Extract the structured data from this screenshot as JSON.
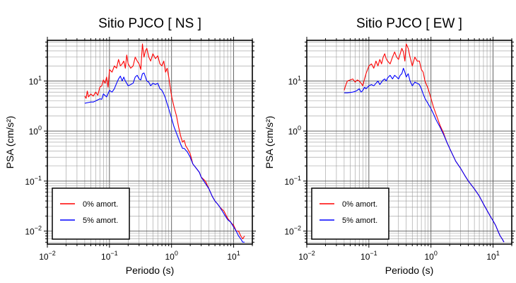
{
  "chart_data": [
    {
      "type": "line",
      "title": "Sitio PJCO [ NS ]",
      "xlabel": "Periodo (s)",
      "ylabel": "PSA (cm/s²)",
      "xscale": "log",
      "yscale": "log",
      "xlim": [
        0.01,
        20
      ],
      "ylim": [
        0.0055,
        65
      ],
      "x_ticks": [
        {
          "base": "10",
          "exp": "−2",
          "value": 0.01
        },
        {
          "base": "10",
          "exp": "−1",
          "value": 0.1
        },
        {
          "base": "10",
          "exp": "0",
          "value": 1
        },
        {
          "base": "10",
          "exp": "1",
          "value": 10
        }
      ],
      "y_ticks": [
        {
          "base": "10",
          "exp": "−2",
          "value": 0.01
        },
        {
          "base": "10",
          "exp": "−1",
          "value": 0.1
        },
        {
          "base": "10",
          "exp": "0",
          "value": 1
        },
        {
          "base": "10",
          "exp": "1",
          "value": 10
        }
      ],
      "grid": true,
      "legend_position": "bottom-left",
      "series": [
        {
          "name": "0% amort.",
          "color": "#ff0000",
          "x": [
            0.04,
            0.042,
            0.044,
            0.046,
            0.05,
            0.055,
            0.06,
            0.065,
            0.07,
            0.075,
            0.08,
            0.085,
            0.09,
            0.095,
            0.1,
            0.11,
            0.12,
            0.13,
            0.14,
            0.15,
            0.16,
            0.17,
            0.18,
            0.19,
            0.2,
            0.22,
            0.24,
            0.26,
            0.28,
            0.3,
            0.32,
            0.34,
            0.36,
            0.38,
            0.4,
            0.43,
            0.46,
            0.5,
            0.55,
            0.6,
            0.65,
            0.7,
            0.75,
            0.8,
            0.85,
            0.9,
            1.0,
            1.1,
            1.2,
            1.3,
            1.4,
            1.5,
            1.6,
            1.7,
            1.8,
            2.0,
            2.2,
            2.5,
            2.8,
            3.0,
            3.5,
            4.0,
            4.5,
            5.0,
            5.5,
            6.0,
            7.0,
            8.0,
            9.0,
            10.0,
            11.0,
            12.0,
            13.0,
            14.0,
            15.0
          ],
          "y": [
            5.0,
            4.5,
            6.3,
            4.8,
            5.5,
            5.0,
            6.0,
            5.2,
            7.5,
            8.0,
            10.5,
            9.0,
            12.0,
            7.5,
            17.0,
            15.0,
            20.0,
            18.0,
            27.0,
            20.0,
            22.0,
            25.0,
            18.0,
            33.0,
            22.0,
            18.0,
            20.0,
            30.0,
            25.0,
            22.0,
            17.0,
            55.0,
            30.0,
            40.0,
            45.0,
            30.0,
            25.0,
            35.0,
            28.0,
            32.0,
            22.0,
            20.0,
            25.0,
            15.0,
            18.0,
            12.0,
            5.0,
            3.0,
            2.0,
            1.2,
            0.8,
            0.6,
            0.65,
            0.5,
            0.45,
            0.35,
            0.22,
            0.18,
            0.15,
            0.12,
            0.1,
            0.07,
            0.05,
            0.04,
            0.035,
            0.03,
            0.025,
            0.018,
            0.015,
            0.013,
            0.01,
            0.01,
            0.008,
            0.007,
            0.008
          ]
        },
        {
          "name": "5% amort.",
          "color": "#0000ff",
          "x": [
            0.04,
            0.045,
            0.05,
            0.055,
            0.06,
            0.065,
            0.07,
            0.075,
            0.08,
            0.09,
            0.1,
            0.11,
            0.12,
            0.13,
            0.14,
            0.15,
            0.16,
            0.17,
            0.18,
            0.19,
            0.2,
            0.22,
            0.24,
            0.26,
            0.28,
            0.3,
            0.32,
            0.34,
            0.36,
            0.38,
            0.4,
            0.43,
            0.46,
            0.5,
            0.55,
            0.6,
            0.65,
            0.7,
            0.75,
            0.8,
            0.85,
            0.9,
            1.0,
            1.1,
            1.2,
            1.3,
            1.4,
            1.5,
            1.6,
            1.8,
            2.0,
            2.2,
            2.5,
            2.8,
            3.0,
            3.5,
            4.0,
            4.5,
            5.0,
            5.5,
            6.0,
            7.0,
            8.0,
            9.0,
            10.0,
            11.0,
            12.0,
            13.0,
            14.0,
            15.0
          ],
          "y": [
            3.6,
            3.7,
            3.8,
            3.8,
            4.0,
            4.2,
            4.4,
            4.3,
            5.5,
            4.8,
            6.5,
            6.0,
            7.0,
            9.0,
            11.0,
            12.5,
            10.0,
            12.0,
            10.0,
            9.0,
            8.0,
            8.5,
            9.0,
            12.0,
            13.0,
            11.0,
            10.5,
            14.0,
            14.5,
            12.0,
            10.0,
            9.5,
            8.0,
            9.0,
            8.5,
            9.0,
            7.0,
            6.5,
            5.5,
            4.5,
            3.5,
            2.8,
            1.8,
            1.2,
            0.9,
            0.7,
            0.55,
            0.45,
            0.45,
            0.38,
            0.3,
            0.22,
            0.18,
            0.15,
            0.12,
            0.09,
            0.07,
            0.05,
            0.04,
            0.035,
            0.03,
            0.022,
            0.017,
            0.015,
            0.012,
            0.01,
            0.008,
            0.007,
            0.006,
            0.006
          ]
        }
      ]
    },
    {
      "type": "line",
      "title": "Sitio PJCO [ EW ]",
      "xlabel": "Periodo (s)",
      "ylabel": "PSA (cm/s²)",
      "xscale": "log",
      "yscale": "log",
      "xlim": [
        0.01,
        20
      ],
      "ylim": [
        0.0055,
        65
      ],
      "x_ticks": [
        {
          "base": "10",
          "exp": "−2",
          "value": 0.01
        },
        {
          "base": "10",
          "exp": "−1",
          "value": 0.1
        },
        {
          "base": "10",
          "exp": "0",
          "value": 1
        },
        {
          "base": "10",
          "exp": "1",
          "value": 10
        }
      ],
      "y_ticks": [
        {
          "base": "10",
          "exp": "−2",
          "value": 0.01
        },
        {
          "base": "10",
          "exp": "−1",
          "value": 0.1
        },
        {
          "base": "10",
          "exp": "0",
          "value": 1
        },
        {
          "base": "10",
          "exp": "1",
          "value": 10
        }
      ],
      "grid": true,
      "legend_position": "bottom-left",
      "series": [
        {
          "name": "0% amort.",
          "color": "#ff0000",
          "x": [
            0.04,
            0.042,
            0.045,
            0.05,
            0.055,
            0.06,
            0.065,
            0.07,
            0.075,
            0.08,
            0.085,
            0.09,
            0.1,
            0.11,
            0.12,
            0.13,
            0.14,
            0.15,
            0.16,
            0.17,
            0.18,
            0.19,
            0.2,
            0.22,
            0.24,
            0.26,
            0.28,
            0.3,
            0.32,
            0.34,
            0.36,
            0.38,
            0.4,
            0.43,
            0.46,
            0.5,
            0.55,
            0.6,
            0.65,
            0.7,
            0.75,
            0.8,
            0.9,
            1.0,
            1.1,
            1.2,
            1.4,
            1.6,
            1.8,
            2.0,
            2.5,
            3.0,
            3.5,
            4.0,
            5.0,
            6.0,
            7.0,
            8.0,
            9.0,
            10.0,
            11.0,
            12.0,
            13.0,
            14.0,
            15.0
          ],
          "y": [
            6.5,
            8.0,
            10.0,
            10.5,
            11.0,
            9.5,
            10.5,
            10.0,
            9.0,
            8.0,
            11.0,
            14.0,
            20.0,
            22.0,
            18.0,
            25.0,
            20.0,
            27.0,
            22.0,
            30.0,
            35.0,
            28.0,
            25.0,
            22.0,
            30.0,
            38.0,
            30.0,
            27.0,
            35.0,
            45.0,
            38.0,
            25.0,
            55.0,
            45.0,
            30.0,
            20.0,
            30.0,
            25.0,
            25.0,
            17.0,
            15.0,
            10.0,
            7.0,
            4.5,
            3.0,
            2.2,
            1.3,
            0.9,
            0.6,
            0.45,
            0.25,
            0.18,
            0.13,
            0.1,
            0.07,
            0.05,
            0.035,
            0.026,
            0.02,
            0.016,
            0.013,
            0.01,
            0.008,
            0.007,
            0.006
          ]
        },
        {
          "name": "5% amort.",
          "color": "#0000ff",
          "x": [
            0.04,
            0.045,
            0.05,
            0.055,
            0.06,
            0.065,
            0.07,
            0.075,
            0.08,
            0.085,
            0.09,
            0.1,
            0.11,
            0.12,
            0.13,
            0.14,
            0.15,
            0.16,
            0.17,
            0.18,
            0.19,
            0.2,
            0.22,
            0.24,
            0.26,
            0.28,
            0.3,
            0.32,
            0.34,
            0.36,
            0.38,
            0.4,
            0.43,
            0.46,
            0.5,
            0.55,
            0.6,
            0.65,
            0.7,
            0.75,
            0.8,
            0.9,
            1.0,
            1.1,
            1.2,
            1.4,
            1.6,
            1.8,
            2.0,
            2.5,
            3.0,
            3.5,
            4.0,
            5.0,
            6.0,
            7.0,
            8.0,
            9.0,
            10.0,
            11.0,
            12.0,
            13.0,
            14.0,
            15.0
          ],
          "y": [
            5.8,
            5.8,
            5.9,
            6.0,
            6.2,
            6.5,
            7.0,
            6.0,
            6.5,
            7.5,
            7.0,
            8.0,
            8.5,
            8.0,
            9.0,
            10.0,
            8.5,
            9.5,
            10.5,
            11.0,
            10.0,
            11.5,
            13.0,
            11.0,
            13.0,
            12.0,
            11.0,
            13.0,
            14.0,
            18.0,
            15.0,
            12.0,
            14.0,
            10.0,
            8.0,
            9.5,
            9.0,
            8.5,
            7.0,
            5.5,
            4.5,
            3.5,
            2.8,
            2.2,
            1.7,
            1.2,
            0.85,
            0.6,
            0.45,
            0.25,
            0.18,
            0.13,
            0.1,
            0.07,
            0.05,
            0.035,
            0.026,
            0.02,
            0.016,
            0.013,
            0.01,
            0.008,
            0.007,
            0.006
          ]
        }
      ]
    }
  ]
}
